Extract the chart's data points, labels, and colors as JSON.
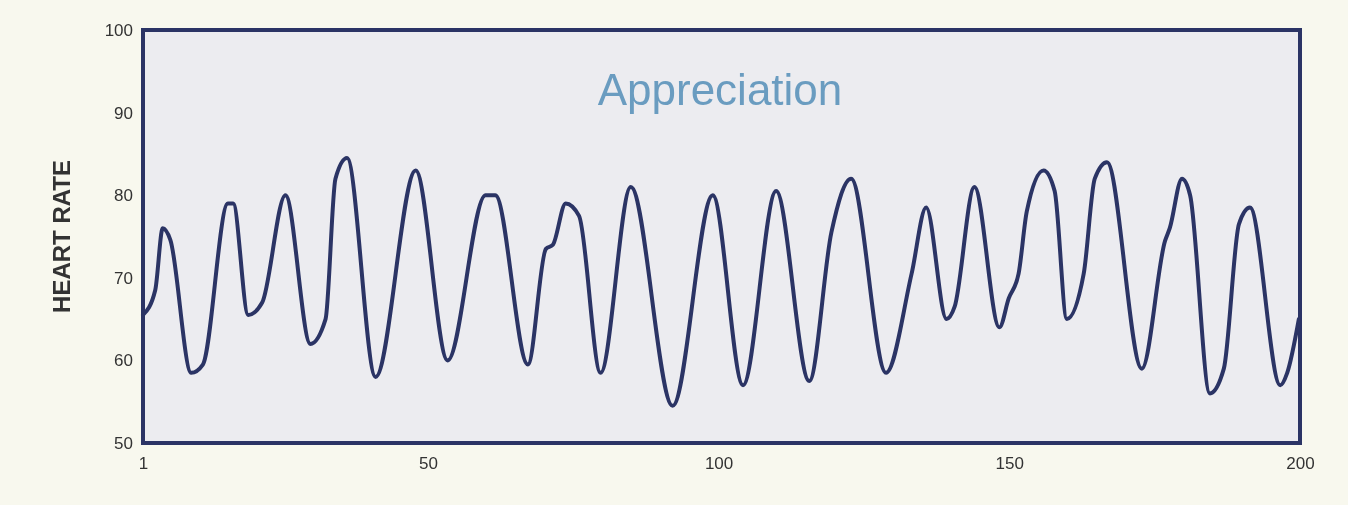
{
  "chart_data": {
    "type": "line",
    "title": "Appreciation",
    "ylabel": "HEART RATE",
    "x": [
      1,
      3.1,
      4.4,
      5.7,
      9.3,
      11.3,
      15.6,
      16.5,
      19.1,
      21.5,
      25.5,
      29.8,
      32.4,
      34.1,
      36.1,
      41,
      47.9,
      53.4,
      59.9,
      61.6,
      67.2,
      70.3,
      71.5,
      73.7,
      76,
      79.7,
      84.9,
      92.1,
      99,
      104.2,
      109.9,
      115.6,
      119.4,
      122.8,
      128.8,
      133.2,
      135.7,
      139.2,
      140.6,
      144,
      148.3,
      149.9,
      151.6,
      153,
      155.9,
      157.8,
      159.9,
      162.8,
      164.7,
      166.8,
      172.8,
      176.8,
      177.6,
      179.7,
      181.1,
      184.5,
      186.9,
      189.5,
      191.4,
      196.6,
      197.8,
      199.8
    ],
    "series": [
      {
        "color": "#2b3465",
        "values": [
          65.5,
          68.5,
          76,
          74.6,
          58.5,
          59.5,
          79,
          79,
          65.5,
          67,
          80,
          62,
          65,
          82,
          84.5,
          58,
          83,
          60,
          80,
          80,
          59.5,
          73.5,
          74,
          79,
          77.5,
          58.5,
          81,
          54.5,
          80,
          57,
          80.5,
          57.5,
          75.5,
          82,
          58.5,
          70.5,
          78.5,
          65,
          66.5,
          81,
          64,
          67.5,
          70.5,
          78,
          83,
          80.5,
          65,
          70.5,
          82,
          84,
          59,
          74.5,
          76,
          82,
          80,
          56,
          59,
          76.5,
          78.5,
          57,
          58.5,
          65
        ]
      }
    ],
    "xlim": [
      1,
      200
    ],
    "xticks": [
      1,
      50,
      100,
      150,
      200
    ],
    "ylim": [
      50,
      100
    ],
    "yticks": [
      50,
      60,
      70,
      80,
      90,
      100
    ],
    "marker": "none",
    "line_style": "solid"
  }
}
